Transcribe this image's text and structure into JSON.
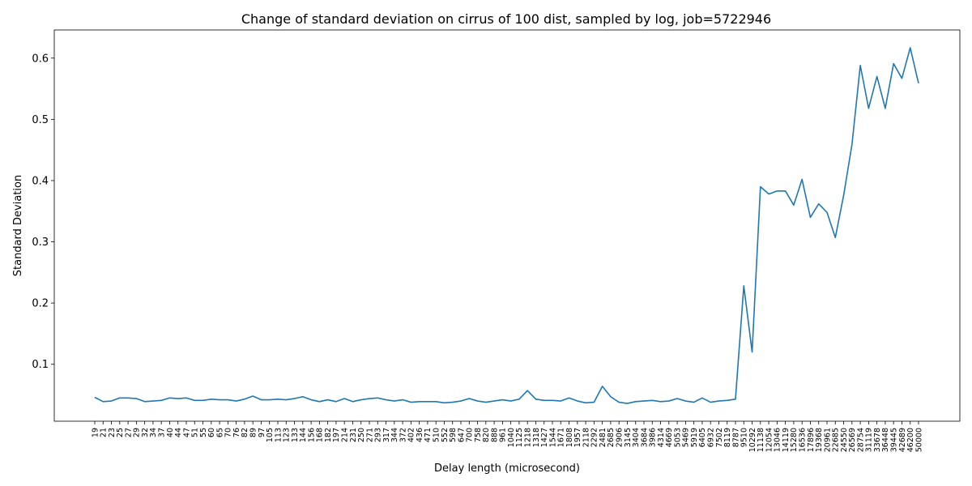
{
  "chart_data": {
    "type": "line",
    "title": "Change of standard deviation on cirrus of 100 dist, sampled by log, job=5722946",
    "xlabel": "Delay length (microsecond)",
    "ylabel": "Standard Deviation",
    "line_color": "#1f77b4",
    "ylim": [
      0.007,
      0.646
    ],
    "yticks": [
      0.1,
      0.2,
      0.3,
      0.4,
      0.5,
      0.6
    ],
    "ytick_labels": [
      "0.1",
      "0.2",
      "0.3",
      "0.4",
      "0.5",
      "0.6"
    ],
    "grid": false,
    "legend": "none",
    "categories": [
      "19",
      "21",
      "23",
      "25",
      "27",
      "29",
      "32",
      "34",
      "37",
      "40",
      "44",
      "47",
      "51",
      "55",
      "60",
      "65",
      "70",
      "76",
      "82",
      "89",
      "97",
      "105",
      "113",
      "123",
      "133",
      "144",
      "156",
      "168",
      "182",
      "197",
      "214",
      "231",
      "250",
      "271",
      "293",
      "317",
      "344",
      "372",
      "402",
      "436",
      "471",
      "510",
      "552",
      "598",
      "647",
      "700",
      "758",
      "820",
      "888",
      "961",
      "1040",
      "1125",
      "1218",
      "1318",
      "1427",
      "1544",
      "1671",
      "1808",
      "1957",
      "2118",
      "2292",
      "2481",
      "2685",
      "2906",
      "3145",
      "3404",
      "3684",
      "3986",
      "4314",
      "4669",
      "5053",
      "5469",
      "5919",
      "6405",
      "6932",
      "7502",
      "8119",
      "8787",
      "9510",
      "10292",
      "11138",
      "12054",
      "13046",
      "14119",
      "15280",
      "16536",
      "17896",
      "19368",
      "20961",
      "22685",
      "24550",
      "26569",
      "28754",
      "31119",
      "33678",
      "36448",
      "39445",
      "42689",
      "46200",
      "50000"
    ],
    "series": [
      {
        "values": [
          0.046,
          0.039,
          0.04,
          0.045,
          0.045,
          0.044,
          0.039,
          0.04,
          0.041,
          0.045,
          0.044,
          0.045,
          0.041,
          0.041,
          0.043,
          0.042,
          0.042,
          0.04,
          0.043,
          0.048,
          0.042,
          0.042,
          0.043,
          0.042,
          0.044,
          0.047,
          0.042,
          0.039,
          0.042,
          0.039,
          0.044,
          0.039,
          0.042,
          0.044,
          0.045,
          0.042,
          0.04,
          0.042,
          0.038,
          0.039,
          0.039,
          0.039,
          0.037,
          0.038,
          0.04,
          0.044,
          0.04,
          0.038,
          0.04,
          0.042,
          0.04,
          0.043,
          0.057,
          0.043,
          0.041,
          0.041,
          0.04,
          0.045,
          0.04,
          0.037,
          0.038,
          0.064,
          0.047,
          0.038,
          0.036,
          0.039,
          0.04,
          0.041,
          0.039,
          0.04,
          0.044,
          0.04,
          0.038,
          0.045,
          0.038,
          0.04,
          0.041,
          0.043,
          0.228,
          0.12,
          0.39,
          0.378,
          0.383,
          0.383,
          0.36,
          0.402,
          0.34,
          0.362,
          0.348,
          0.307,
          0.376,
          0.459,
          0.588,
          0.518,
          0.57,
          0.518,
          0.591,
          0.567,
          0.617,
          0.559
        ]
      }
    ]
  }
}
